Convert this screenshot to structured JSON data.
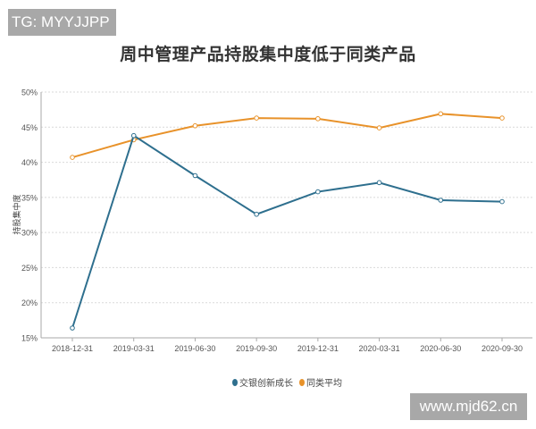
{
  "watermarks": {
    "top_left": "TG: MYYJJPP",
    "bottom_right": "www.mjd62.cn"
  },
  "colors": {
    "series1": "#2e6f8e",
    "series2": "#e8922a",
    "grid": "#d9d9d9",
    "axis": "#aaaaaa"
  },
  "chart_data": {
    "type": "line",
    "title": "周中管理产品持股集中度低于同类产品",
    "xlabel": "",
    "ylabel": "持股集中度",
    "ylim": [
      15,
      50
    ],
    "yticks": [
      "15%",
      "20%",
      "25%",
      "30%",
      "35%",
      "40%",
      "45%",
      "50%"
    ],
    "grid": true,
    "legend_position": "bottom",
    "categories": [
      "2018-12-31",
      "2019-03-31",
      "2019-06-30",
      "2019-09-30",
      "2019-12-31",
      "2020-03-31",
      "2020-06-30",
      "2020-09-30"
    ],
    "series": [
      {
        "name": "交银创新成长",
        "color": "#2e6f8e",
        "values": [
          16.4,
          43.8,
          38.1,
          32.6,
          35.8,
          37.1,
          34.6,
          34.4
        ]
      },
      {
        "name": "同类平均",
        "color": "#e8922a",
        "values": [
          40.7,
          43.2,
          45.2,
          46.3,
          46.2,
          44.9,
          46.9,
          46.3
        ]
      }
    ]
  }
}
